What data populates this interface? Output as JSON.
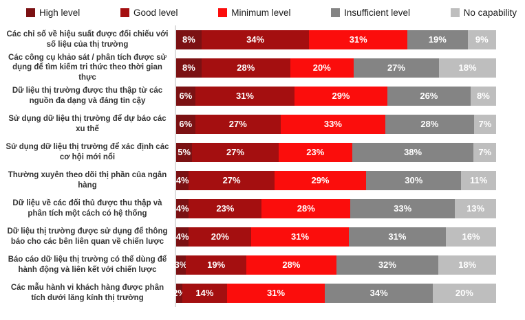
{
  "legend": {
    "items": [
      {
        "label": "High level",
        "color": "#7B1113"
      },
      {
        "label": "Good level",
        "color": "#A40F10"
      },
      {
        "label": "Minimum level",
        "color": "#FB0D0C"
      },
      {
        "label": "Insufficient level",
        "color": "#848484"
      },
      {
        "label": "No capability",
        "color": "#BEBEBE"
      }
    ]
  },
  "chart_data": {
    "type": "bar",
    "orientation": "horizontal",
    "stacked": true,
    "unit": "%",
    "value_suffix": "%",
    "legend_position": "top",
    "grid": false,
    "axis_line_color": "#dcdcdc",
    "categories": [
      "Các chỉ số về hiệu suất được đối chiếu với số liệu của thị trường",
      "Các công cụ khảo sát / phân tích được sử dụng để tìm kiếm tri thức theo thời gian thực",
      "Dữ liệu thị trường được thu thập từ các nguồn đa dạng và đáng tin cậy",
      "Sử dụng dữ liệu thị trường để dự báo các xu thế",
      "Sử dụng dữ liệu thị trường để xác định các cơ hội mới nổi",
      "Thường xuyên theo dõi thị phần của ngân hàng",
      "Dữ liệu về các đối thủ được thu thập và phân tích một cách có hệ thống",
      "Dữ liệu thị trường được sử dụng để thông báo cho các bên liên quan về chiến lược",
      "Báo cáo dữ liệu thị trường có thể dùng để hành động và liên kết với chiến lược",
      "Các mẫu hành vi khách hàng được phân tích dưới lăng kính thị trường"
    ],
    "series": [
      {
        "name": "High level",
        "color": "#7B1113",
        "values": [
          8,
          8,
          6,
          6,
          5,
          4,
          4,
          4,
          3,
          2
        ]
      },
      {
        "name": "Good level",
        "color": "#A40F10",
        "values": [
          34,
          28,
          31,
          27,
          27,
          27,
          23,
          20,
          19,
          14
        ]
      },
      {
        "name": "Minimum level",
        "color": "#FB0D0C",
        "values": [
          31,
          20,
          29,
          33,
          23,
          29,
          28,
          31,
          28,
          31
        ]
      },
      {
        "name": "Insufficient level",
        "color": "#848484",
        "values": [
          19,
          27,
          26,
          28,
          38,
          30,
          33,
          31,
          32,
          34
        ]
      },
      {
        "name": "No capability",
        "color": "#BEBEBE",
        "values": [
          9,
          18,
          8,
          7,
          7,
          11,
          13,
          16,
          18,
          20
        ]
      }
    ]
  }
}
